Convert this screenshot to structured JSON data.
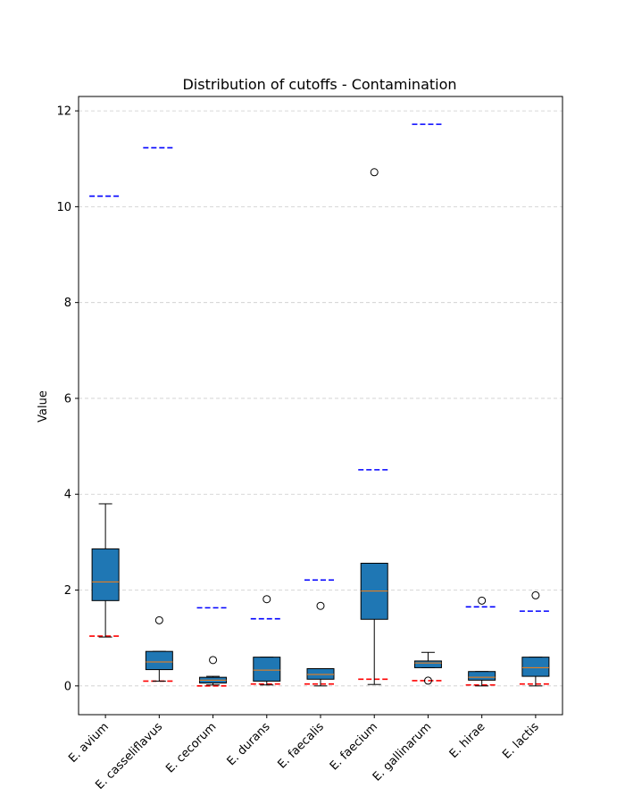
{
  "chart_data": {
    "type": "box",
    "title": "Distribution of cutoffs - Contamination",
    "xlabel": "",
    "ylabel": "Value",
    "ylim": [
      -0.6,
      12.3
    ],
    "yticks": [
      0,
      2,
      4,
      6,
      8,
      10,
      12
    ],
    "grid": "y-dashed",
    "box_color": "#1f77b4",
    "median_color": "#ff7f0e",
    "upper_line_color": "#0000ff",
    "lower_line_color": "#ff0000",
    "categories": [
      "E. avium",
      "E. casseliflavus",
      "E. cecorum",
      "E. durans",
      "E. faecalis",
      "E. faecium",
      "E. gallinarum",
      "E. hirae",
      "E. lactis"
    ],
    "boxes": [
      {
        "whislo": 1.02,
        "q1": 1.78,
        "med": 2.17,
        "q3": 2.86,
        "whishi": 3.8,
        "fliers": [],
        "upper_line": 10.22,
        "lower_line": 1.04
      },
      {
        "whislo": 0.1,
        "q1": 0.34,
        "med": 0.5,
        "q3": 0.72,
        "whishi": 0.72,
        "fliers": [
          1.37
        ],
        "upper_line": 11.23,
        "lower_line": 0.1
      },
      {
        "whislo": 0.02,
        "q1": 0.06,
        "med": 0.12,
        "q3": 0.18,
        "whishi": 0.2,
        "fliers": [
          0.54
        ],
        "upper_line": 1.63,
        "lower_line": 0.0
      },
      {
        "whislo": 0.02,
        "q1": 0.1,
        "med": 0.33,
        "q3": 0.6,
        "whishi": 0.6,
        "fliers": [
          1.81
        ],
        "upper_line": 1.4,
        "lower_line": 0.04
      },
      {
        "whislo": 0.0,
        "q1": 0.14,
        "med": 0.24,
        "q3": 0.36,
        "whishi": 0.36,
        "fliers": [
          1.67
        ],
        "upper_line": 2.21,
        "lower_line": 0.04
      },
      {
        "whislo": 0.03,
        "q1": 1.39,
        "med": 1.98,
        "q3": 2.56,
        "whishi": 2.56,
        "fliers": [
          10.72
        ],
        "upper_line": 4.51,
        "lower_line": 0.14
      },
      {
        "whislo": 0.38,
        "q1": 0.38,
        "med": 0.48,
        "q3": 0.52,
        "whishi": 0.7,
        "fliers": [
          0.11
        ],
        "upper_line": 11.72,
        "lower_line": 0.11
      },
      {
        "whislo": 0.0,
        "q1": 0.12,
        "med": 0.18,
        "q3": 0.3,
        "whishi": 0.3,
        "fliers": [
          1.78
        ],
        "upper_line": 1.65,
        "lower_line": 0.02
      },
      {
        "whislo": 0.0,
        "q1": 0.2,
        "med": 0.38,
        "q3": 0.6,
        "whishi": 0.6,
        "fliers": [
          1.89
        ],
        "upper_line": 1.56,
        "lower_line": 0.04
      }
    ]
  }
}
